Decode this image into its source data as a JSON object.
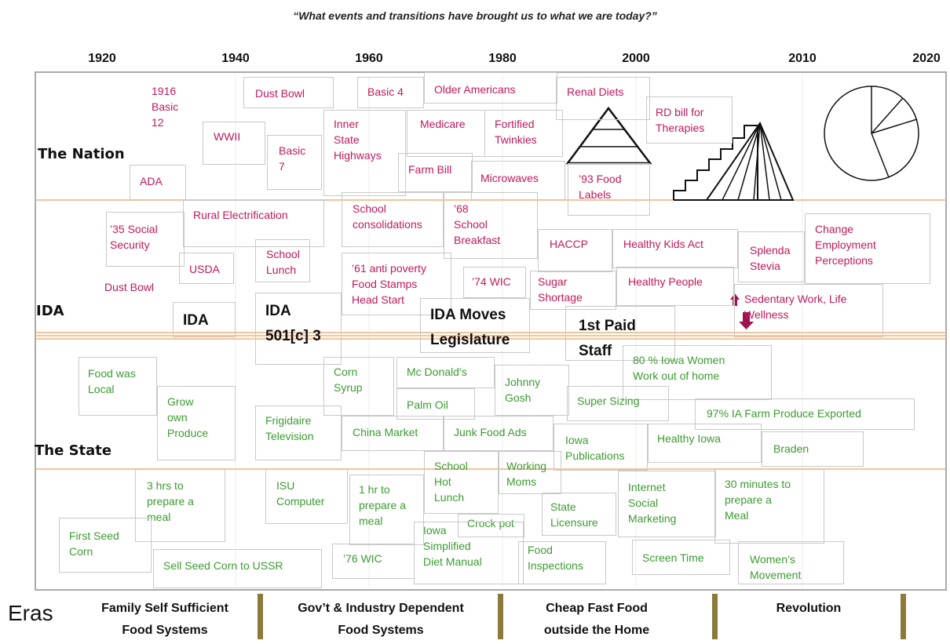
{
  "title": "“What events and transitions have brought us to what we are today?”",
  "years": [
    1920,
    1940,
    1960,
    1980,
    2000,
    2010,
    2020
  ],
  "rows": [
    "The Nation",
    "IDA",
    "The State"
  ],
  "eras_label": "Eras",
  "eras": [
    "Family Self Sufficient\nFood Systems",
    "Gov’t & Industry Dependent\nFood Systems",
    "Cheap Fast Food\noutside the Home",
    "Revolution"
  ],
  "nation_events": [
    "1916\nBasic\n12",
    "Dust Bowl",
    "Basic 4",
    "Older Americans",
    "Renal Diets",
    "RD bill for\nTherapies",
    "WWII",
    "Basic\n7",
    "Inner\nState\nHighways",
    "Medicare",
    "Fortified\nTwinkies",
    "Farm Bill",
    "Microwaves",
    "’93 Food\nLabels",
    "ADA",
    "Rural Electrification",
    "School\nconsolidations",
    "’68\nSchool\nBreakfast",
    "’35 Social\nSecurity",
    "USDA",
    "School\nLunch",
    "’61 anti poverty\nFood Stamps\nHead Start",
    "’74 WIC",
    "HACCP",
    "Healthy Kids Act",
    "Sugar\nShortage",
    "Healthy People",
    "Splenda\nStevia",
    "Change\nEmployment\nPerceptions",
    "Dust Bowl",
    "Sedentary Work, Life\nWellness"
  ],
  "ida_events": [
    "IDA",
    "IDA\n501[c] 3",
    "IDA Moves\nLegislature",
    "1st Paid\nStaff"
  ],
  "state_events": [
    "Food was\nLocal",
    "Grow\nown\nProduce",
    "Corn\nSyrup",
    "Mc Donald’s",
    "Johnny\nGosh",
    "80 % Iowa Women\nWork out of home",
    "Palm Oil",
    "Super Sizing",
    "97% IA Farm Produce  Exported",
    "Frigidaire\nTelevision",
    "China Market",
    "Junk Food Ads",
    "Iowa\nPublications",
    "Healthy Iowa",
    "Braden",
    "School\nHot\nLunch",
    "Working\nMoms",
    "3 hrs to\nprepare a\nmeal",
    "ISU\nComputer",
    "1 hr to\nprepare a\nmeal",
    "Internet\nSocial\nMarketing",
    "30 minutes to\nprepare a\nMeal",
    "State\nLicensure",
    "Crock pot",
    "Iowa\nSimplified\nDiet Manual",
    "First Seed\nCorn",
    "Food\nInspections",
    "Screen Time",
    "Women’s\nMovement",
    "’76 WIC",
    "Sell Seed Corn to USSR"
  ]
}
